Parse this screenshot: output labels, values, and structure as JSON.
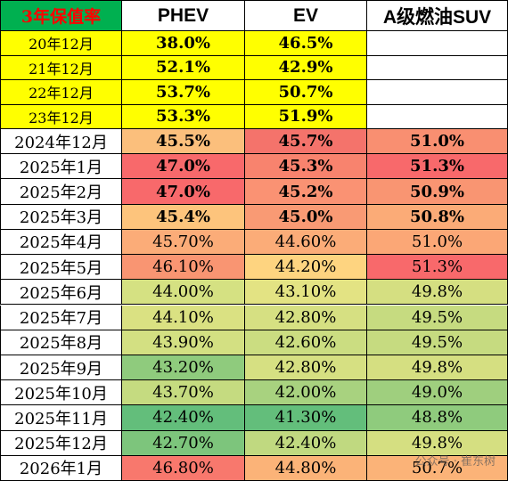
{
  "table": {
    "header": [
      "3年保值率",
      "PHEV",
      "EV",
      "A级燃油SUV"
    ],
    "header_fill": "#00b050",
    "rows": [
      {
        "label": "20年12月",
        "cells": [
          "38.0%",
          "46.5%",
          ""
        ],
        "label_fill": "#ffff00",
        "fills": [
          "#ffff00",
          "#ffff00",
          "#ffffff"
        ],
        "bold": true,
        "short": true
      },
      {
        "label": "21年12月",
        "cells": [
          "52.1%",
          "42.9%",
          ""
        ],
        "label_fill": "#ffff00",
        "fills": [
          "#ffff00",
          "#ffff00",
          "#ffffff"
        ],
        "bold": true,
        "short": true
      },
      {
        "label": "22年12月",
        "cells": [
          "53.7%",
          "50.7%",
          ""
        ],
        "label_fill": "#ffff00",
        "fills": [
          "#ffff00",
          "#ffff00",
          "#ffffff"
        ],
        "bold": true,
        "short": true
      },
      {
        "label": "23年12月",
        "cells": [
          "53.3%",
          "51.9%",
          ""
        ],
        "label_fill": "#ffff00",
        "fills": [
          "#ffff00",
          "#ffff00",
          "#ffffff"
        ],
        "bold": true,
        "short": true
      },
      {
        "label": "2024年12月",
        "cells": [
          "45.5%",
          "45.7%",
          "51.0%"
        ],
        "fills": [
          "#fbbf7c",
          "#f4736b",
          "#f98f71"
        ],
        "bold": true
      },
      {
        "label": "2025年1月",
        "cells": [
          "47.0%",
          "45.3%",
          "51.3%"
        ],
        "fills": [
          "#f8696b",
          "#f8836e",
          "#f8696b"
        ],
        "bold": true
      },
      {
        "label": "2025年2月",
        "cells": [
          "47.0%",
          "45.2%",
          "50.9%"
        ],
        "fills": [
          "#f8696b",
          "#fa9273",
          "#f99572"
        ],
        "bold": true
      },
      {
        "label": "2025年3月",
        "cells": [
          "45.4%",
          "45.0%",
          "50.8%"
        ],
        "fills": [
          "#fdc47c",
          "#f99a74",
          "#fbab77"
        ],
        "bold": true
      },
      {
        "label": "2025年4月",
        "cells": [
          "45.70%",
          "44.60%",
          "51.0%"
        ],
        "fills": [
          "#fbac78",
          "#fbac78",
          "#fba776"
        ],
        "bold": false
      },
      {
        "label": "2025年5月",
        "cells": [
          "46.10%",
          "44.20%",
          "51.3%"
        ],
        "fills": [
          "#f99572",
          "#fed480",
          "#f8696b"
        ],
        "bold": false
      },
      {
        "label": "2025年6月",
        "cells": [
          "44.00%",
          "43.10%",
          "49.8%"
        ],
        "fills": [
          "#d5e182",
          "#e3e383",
          "#d5df81"
        ],
        "bold": false
      },
      {
        "label": "2025年7月",
        "cells": [
          "44.10%",
          "42.80%",
          "49.5%"
        ],
        "fills": [
          "#dae182",
          "#d6e082",
          "#c6db80"
        ],
        "bold": false
      },
      {
        "label": "2025年8月",
        "cells": [
          "43.90%",
          "42.60%",
          "49.5%"
        ],
        "fills": [
          "#d3e082",
          "#cbdd81",
          "#c6db80"
        ],
        "bold": false
      },
      {
        "label": "2025年9月",
        "cells": [
          "43.20%",
          "42.80%",
          "49.8%"
        ],
        "fills": [
          "#8fcb7d",
          "#d6e082",
          "#d5df81"
        ],
        "bold": false
      },
      {
        "label": "2025年10月",
        "cells": [
          "43.70%",
          "42.00%",
          "49.0%"
        ],
        "fills": [
          "#c5db80",
          "#a8d27f",
          "#9fcf7e"
        ],
        "bold": false
      },
      {
        "label": "2025年11月",
        "cells": [
          "42.40%",
          "41.30%",
          "48.8%"
        ],
        "fills": [
          "#63be7b",
          "#63be7b",
          "#8fcb7d"
        ],
        "bold": false
      },
      {
        "label": "2025年12月",
        "cells": [
          "42.70%",
          "42.40%",
          "49.8%"
        ],
        "fills": [
          "#7dc57c",
          "#c0d980",
          "#d5df81"
        ],
        "bold": false
      },
      {
        "label": "2026年1月",
        "cells": [
          "46.80%",
          "44.80%",
          "50.7%"
        ],
        "fills": [
          "#f8786d",
          "#fbb378",
          "#fbb378"
        ],
        "bold": false
      }
    ]
  },
  "watermark": "公众号 · 崔东树"
}
